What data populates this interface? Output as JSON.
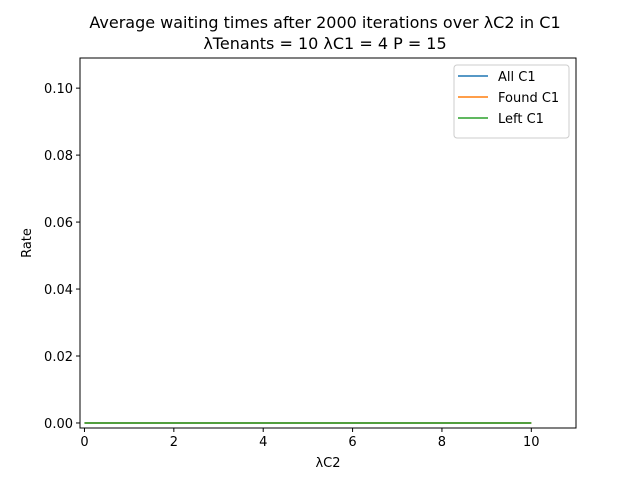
{
  "chart_data": {
    "type": "line",
    "title": "Average waiting times after 2000 iterations over λC2 in C1",
    "subtitle": "λTenants = 10 λC1 = 4 P = 15",
    "xlabel": "λC2",
    "ylabel": "Rate",
    "xlim": [
      -0.1,
      11
    ],
    "ylim": [
      -0.0015,
      0.109
    ],
    "xticks": [
      0,
      2,
      4,
      6,
      8,
      10
    ],
    "xtick_labels": [
      "0",
      "2",
      "4",
      "6",
      "8",
      "10"
    ],
    "yticks": [
      0,
      0.02,
      0.04,
      0.06,
      0.08,
      0.1
    ],
    "ytick_labels": [
      "0.00",
      "0.02",
      "0.04",
      "0.06",
      "0.08",
      "0.10"
    ],
    "grid": false,
    "legend_position": "top-right",
    "x": [
      0,
      1,
      2,
      3,
      4,
      5,
      6,
      7,
      8,
      9,
      10
    ],
    "series": [
      {
        "name": "All C1",
        "color": "#1f77b4",
        "values": [
          0,
          0,
          0,
          0,
          0,
          0,
          0,
          0,
          0,
          0,
          0
        ]
      },
      {
        "name": "Found C1",
        "color": "#ff7f0e",
        "values": [
          0,
          0,
          0,
          0,
          0,
          0,
          0,
          0,
          0,
          0,
          0
        ]
      },
      {
        "name": "Left C1",
        "color": "#2ca02c",
        "values": [
          0,
          0,
          0,
          0,
          0,
          0,
          0,
          0,
          0,
          0,
          0
        ]
      }
    ]
  }
}
